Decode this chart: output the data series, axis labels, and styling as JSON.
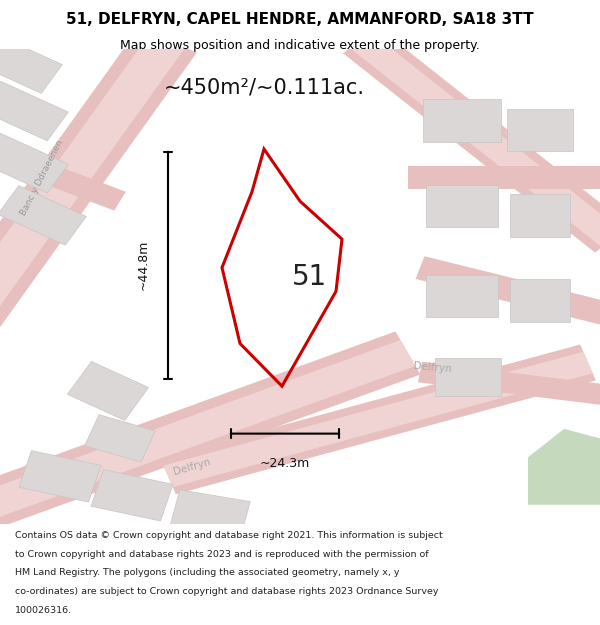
{
  "title": "51, DELFRYN, CAPEL HENDRE, AMMANFORD, SA18 3TT",
  "subtitle": "Map shows position and indicative extent of the property.",
  "area_label": "~450m²/~0.111ac.",
  "property_number": "51",
  "dim_vertical": "~44.8m",
  "dim_horizontal": "~24.3m",
  "footer_lines": [
    "Contains OS data © Crown copyright and database right 2021. This information is subject",
    "to Crown copyright and database rights 2023 and is reproduced with the permission of",
    "HM Land Registry. The polygons (including the associated geometry, namely x, y",
    "co-ordinates) are subject to Crown copyright and database rights 2023 Ordnance Survey",
    "100026316."
  ],
  "map_bg": "#edeaea",
  "road_color": "#e8bfbf",
  "road_inner": "#f0d4d4",
  "building_color": "#dbd7d7",
  "building_edge": "#c8c4c4",
  "green_color": "#c5d9bc",
  "prop_edge_color": "#cc0000",
  "title_fontsize": 11,
  "subtitle_fontsize": 9,
  "area_fontsize": 15,
  "number_fontsize": 20,
  "dim_fontsize": 9,
  "footer_fontsize": 6.8
}
